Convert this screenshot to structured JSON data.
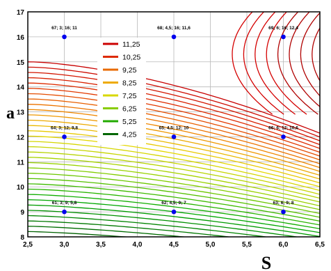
{
  "chart_data": {
    "type": "contour",
    "title": "",
    "xlabel": "S",
    "ylabel": "a",
    "xlim": [
      2.5,
      6.5
    ],
    "ylim": [
      8,
      17
    ],
    "x_ticks": [
      2.5,
      3.0,
      3.5,
      4.0,
      4.5,
      5.0,
      5.5,
      6.0,
      6.5
    ],
    "y_ticks": [
      8,
      9,
      10,
      11,
      12,
      13,
      14,
      15,
      16,
      17
    ],
    "x_tick_labels": [
      "2,5",
      "3,0",
      "3,5",
      "4,0",
      "4,5",
      "5,0",
      "5,5",
      "6,0",
      "6,5"
    ],
    "y_tick_labels": [
      "8",
      "9",
      "10",
      "11",
      "12",
      "13",
      "14",
      "15",
      "16",
      "17"
    ],
    "grid": true,
    "legend_position": "upper-left",
    "legend": [
      {
        "label": "11,25",
        "color": "#cc0000"
      },
      {
        "label": "10,25",
        "color": "#dd2a00"
      },
      {
        "label": "9,25",
        "color": "#e86a00"
      },
      {
        "label": "8,25",
        "color": "#eeaa00"
      },
      {
        "label": "7,25",
        "color": "#d8d800"
      },
      {
        "label": "6,25",
        "color": "#88cc00"
      },
      {
        "label": "5,25",
        "color": "#22aa00"
      },
      {
        "label": "4,25",
        "color": "#006600"
      }
    ],
    "points": [
      {
        "x": 3.0,
        "y": 16,
        "label": "67; 3; 16; 11"
      },
      {
        "x": 4.5,
        "y": 16,
        "label": "68; 4,5; 16; 11,6"
      },
      {
        "x": 6.0,
        "y": 16,
        "label": "69; 6; 16; 12,4"
      },
      {
        "x": 3.0,
        "y": 12,
        "label": "64; 3; 12; 9,8"
      },
      {
        "x": 4.5,
        "y": 12,
        "label": "65; 4,5; 12; 10"
      },
      {
        "x": 6.0,
        "y": 12,
        "label": "66; 6; 12; 10,6"
      },
      {
        "x": 3.0,
        "y": 9,
        "label": "61; 3; 9; 5,8"
      },
      {
        "x": 4.5,
        "y": 9,
        "label": "62; 4,5; 9; 7"
      },
      {
        "x": 6.0,
        "y": 9,
        "label": "63; 6; 9; 8"
      }
    ]
  }
}
